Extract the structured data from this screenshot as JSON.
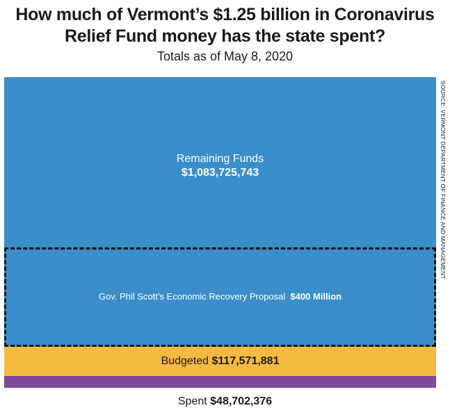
{
  "header": {
    "title_line1": "How much of Vermont’s $1.25 billion in Coronavirus",
    "title_line2": "Relief Fund money has the state spent?",
    "subtitle": "Totals as of May 8, 2020"
  },
  "labels": {
    "remaining_name": "Remaining Funds",
    "remaining_value": "$1,083,725,743",
    "proposal_name": "Gov. Phil Scott’s Economic Recovery Proposal",
    "proposal_value": "$400 Million",
    "budgeted_name": "Budgeted",
    "budgeted_value": "$117,571,881",
    "spent_name": "Spent",
    "spent_value": "$48,702,376"
  },
  "source_note": "SOURCE: VERMONT DEPARTMENT OF FINANCE AND MANAGEMENT",
  "colors": {
    "remaining": "#3a8ecb",
    "budgeted": "#f5bb41",
    "spent": "#7e4a9b",
    "proposal_outline": "#111111"
  },
  "chart_data": {
    "type": "bar",
    "stacked": true,
    "orientation": "vertical",
    "total": 1250000000,
    "segments_bottom_to_top": [
      {
        "name": "Spent",
        "value": 48702376
      },
      {
        "name": "Budgeted",
        "value": 117571881
      },
      {
        "name": "Remaining Funds",
        "value": 1083725743
      }
    ],
    "overlay": {
      "name": "Gov. Phil Scott’s Economic Recovery Proposal",
      "value": 400000000,
      "style": "dashed outline",
      "position": "bottom of Remaining Funds"
    }
  }
}
